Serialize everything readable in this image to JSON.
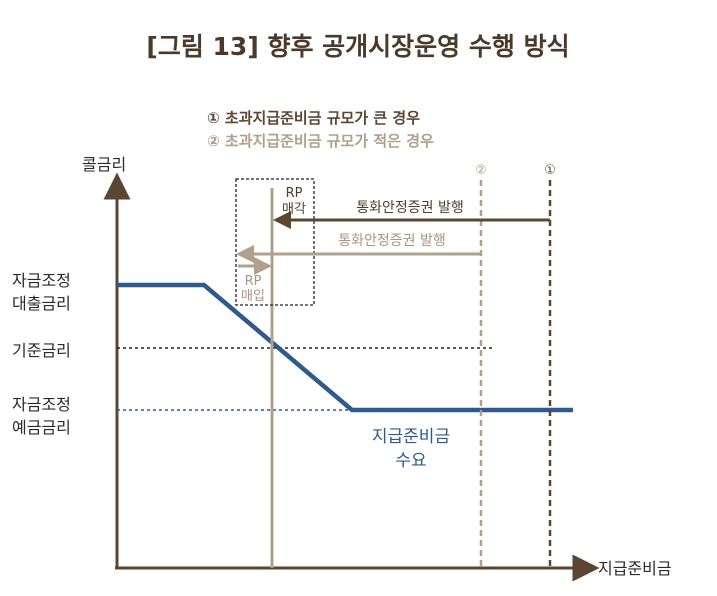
{
  "title": "[그림 13] 향후 공개시장운영 수행 방식",
  "legend": {
    "case1": "① 초과지급준비금 규모가 큰 경우",
    "case2": "② 초과지급준비금 규모가 적은 경우"
  },
  "axes": {
    "y_label": "콜금리",
    "x_label": "지급준비금"
  },
  "rate_labels": {
    "lending_line1": "자금조정",
    "lending_line2": "대출금리",
    "base": "기준금리",
    "deposit_line1": "자금조정",
    "deposit_line2": "예금금리"
  },
  "markers": {
    "one": "①",
    "two": "②"
  },
  "arrows": {
    "stab_bond_dark": "통화안정증권 발행",
    "stab_bond_light": "통화안정증권 발행",
    "rp_sell_line1": "RP",
    "rp_sell_line2": "매각",
    "rp_buy_line1": "RP",
    "rp_buy_line2": "매입"
  },
  "demand_label": {
    "line1": "지급준비금",
    "line2": "수요"
  },
  "colors": {
    "axis": "#5a4632",
    "demand": "#2e5a8c",
    "dark_brown": "#5a4632",
    "light_brown": "#b0a08c",
    "base_dotted": "#222222",
    "deposit_dotted": "#2e5a8c"
  }
}
